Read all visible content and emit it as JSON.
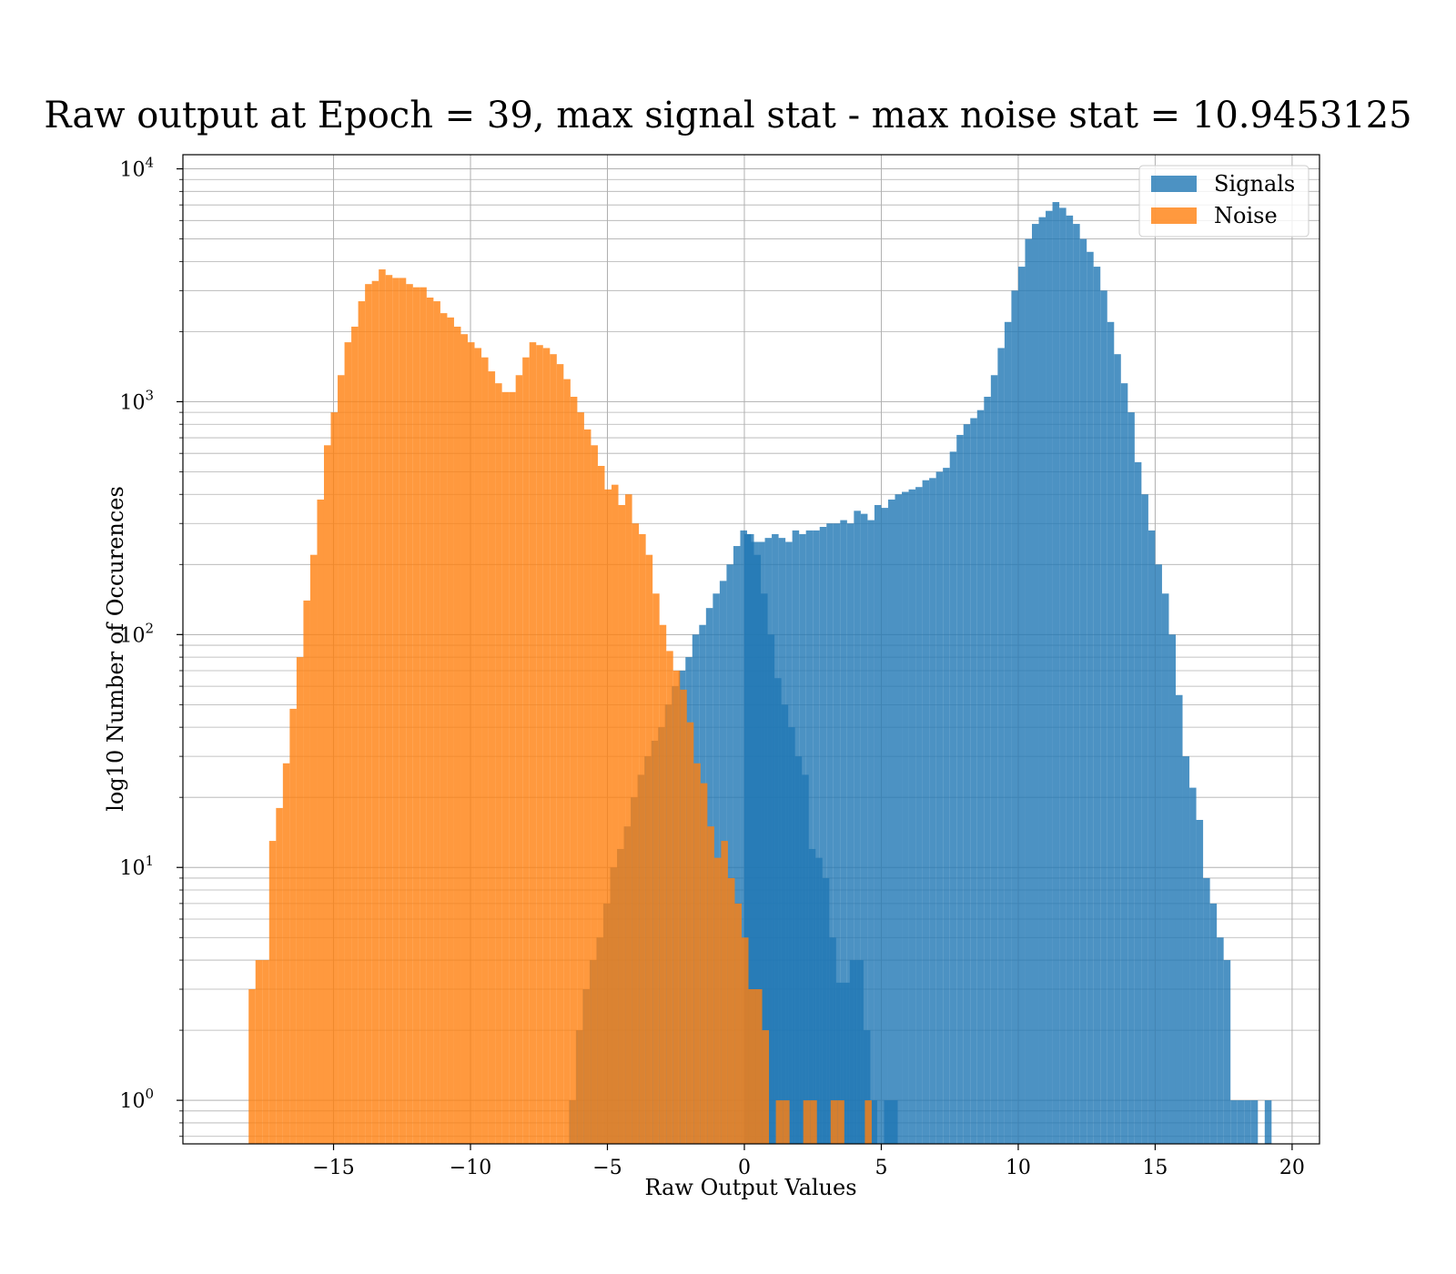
{
  "chart_data": {
    "type": "bar",
    "title": "Raw output at Epoch = 39, max signal stat - max noise stat = 10.9453125",
    "xlabel": "Raw Output Values",
    "ylabel": "log10 Number of Occurences",
    "xlim": [
      -20.5,
      21
    ],
    "ylim": [
      0.65,
      11500
    ],
    "yscale": "log",
    "grid": true,
    "legend_position": "top-right",
    "xticks": [
      -15,
      -10,
      -5,
      0,
      5,
      10,
      15,
      20
    ],
    "xtick_labels": [
      "−15",
      "−10",
      "−5",
      "0",
      "5",
      "10",
      "15",
      "20"
    ],
    "yticks": [
      1,
      10,
      100,
      1000,
      10000
    ],
    "ytick_labels": [
      {
        "base": "10",
        "exp": "0"
      },
      {
        "base": "10",
        "exp": "1"
      },
      {
        "base": "10",
        "exp": "2"
      },
      {
        "base": "10",
        "exp": "3"
      },
      {
        "base": "10",
        "exp": "4"
      }
    ],
    "series": [
      {
        "name": "Signals",
        "color": "#1f77b4",
        "opacity": 0.8,
        "bin_start": -6.4,
        "bin_width": 0.25,
        "values": [
          1,
          2,
          3,
          4,
          5,
          7,
          10,
          12,
          15,
          20,
          25,
          30,
          35,
          40,
          50,
          60,
          70,
          80,
          100,
          110,
          130,
          150,
          170,
          200,
          240,
          280,
          270,
          220,
          150,
          100,
          65,
          50,
          40,
          30,
          25,
          12,
          11,
          9,
          5,
          3.2,
          3.2,
          4,
          4,
          2,
          1,
          0,
          1,
          1,
          0,
          0,
          0,
          0,
          0,
          0,
          0,
          0,
          0
        ]
      },
      {
        "name": "Signals",
        "color": "#1f77b4",
        "opacity": 0.8,
        "bin_start": 0,
        "bin_width": 0.25,
        "values": [
          270,
          250,
          250,
          260,
          270,
          260,
          250,
          280,
          270,
          280,
          280,
          290,
          300,
          300,
          310,
          300,
          340,
          330,
          310,
          360,
          350,
          380,
          400,
          410,
          420,
          430,
          460,
          470,
          500,
          520,
          610,
          720,
          800,
          850,
          920,
          1050,
          1300,
          1700,
          2200,
          3000,
          3800,
          5000,
          5800,
          6200,
          6600,
          7200,
          6800,
          6300,
          5800,
          5000,
          4400,
          3800,
          3000,
          2200,
          1600,
          1200,
          900,
          550,
          400,
          280,
          200,
          150,
          100,
          55,
          30,
          22,
          16,
          9,
          7,
          5,
          4,
          1,
          1,
          1,
          1,
          0,
          1
        ]
      },
      {
        "name": "Noise",
        "color": "#ff7f0e",
        "opacity": 0.8,
        "bin_start": -18.1,
        "bin_width": 0.25,
        "values": [
          3,
          4,
          4,
          13,
          18,
          28,
          48,
          80,
          140,
          220,
          380,
          650,
          900,
          1300,
          1800,
          2100,
          2700,
          3200,
          3300,
          3700,
          3500,
          3400,
          3400,
          3200,
          3100,
          3100,
          2800,
          2700,
          2400,
          2300,
          2100,
          1950,
          1800,
          1700,
          1550,
          1350,
          1200,
          1100,
          1100,
          1300,
          1550,
          1800,
          1750,
          1700,
          1600,
          1450,
          1250,
          1050,
          900,
          760,
          650,
          530,
          420,
          440,
          360,
          400,
          300,
          270,
          220,
          150,
          110,
          85,
          70,
          58,
          42,
          28,
          23,
          15,
          11,
          13,
          9,
          7,
          5,
          3,
          3,
          2,
          0,
          1,
          1,
          0,
          0,
          1,
          1,
          0,
          0,
          1,
          1,
          0,
          0,
          0,
          1
        ]
      }
    ]
  }
}
